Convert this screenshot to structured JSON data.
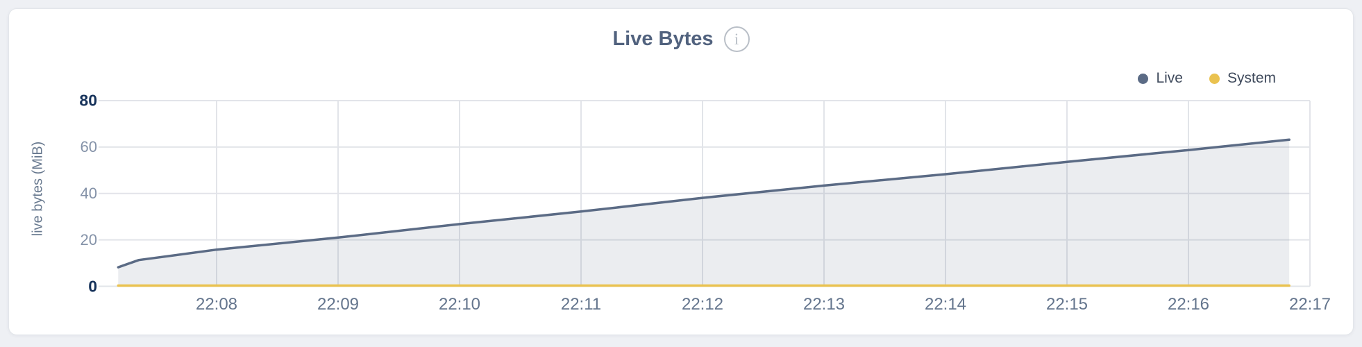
{
  "header": {
    "info_glyph": "i"
  },
  "chart_data": {
    "type": "area",
    "title": "Live Bytes",
    "xlabel": "",
    "ylabel": "live bytes (MiB)",
    "ylim": [
      0,
      80
    ],
    "xlim_minutes_after_2200": [
      7,
      17
    ],
    "grid": true,
    "legend_position": "top-right",
    "y_ticks": [
      {
        "value": 0,
        "label": "0",
        "emphasis": true
      },
      {
        "value": 20,
        "label": "20",
        "emphasis": false
      },
      {
        "value": 40,
        "label": "40",
        "emphasis": false
      },
      {
        "value": 60,
        "label": "60",
        "emphasis": false
      },
      {
        "value": 80,
        "label": "80",
        "emphasis": true
      }
    ],
    "x_ticks": [
      {
        "t": 8,
        "label": "22:08"
      },
      {
        "t": 9,
        "label": "22:09"
      },
      {
        "t": 10,
        "label": "22:10"
      },
      {
        "t": 11,
        "label": "22:11"
      },
      {
        "t": 12,
        "label": "22:12"
      },
      {
        "t": 13,
        "label": "22:13"
      },
      {
        "t": 14,
        "label": "22:14"
      },
      {
        "t": 15,
        "label": "22:15"
      },
      {
        "t": 16,
        "label": "22:16"
      },
      {
        "t": 17,
        "label": "22:17"
      }
    ],
    "series": [
      {
        "name": "Live",
        "unit": "MiB",
        "color": "#5b6b85",
        "fill": "rgba(91,107,133,0.12)",
        "points": [
          [
            7.19,
            8.2
          ],
          [
            7.36,
            11.3
          ],
          [
            8.0,
            15.8
          ],
          [
            9.0,
            21.0
          ],
          [
            10.0,
            26.8
          ],
          [
            11.0,
            32.2
          ],
          [
            12.0,
            38.1
          ],
          [
            13.0,
            43.4
          ],
          [
            14.0,
            48.3
          ],
          [
            15.0,
            53.6
          ],
          [
            16.0,
            58.7
          ],
          [
            16.83,
            63.2
          ]
        ]
      },
      {
        "name": "System",
        "unit": "MiB",
        "color": "#eac24f",
        "fill": "none",
        "points": [
          [
            7.19,
            0.3
          ],
          [
            16.83,
            0.3
          ]
        ]
      }
    ]
  },
  "colors": {
    "page_bg": "#eef0f4",
    "card_bg": "#ffffff",
    "card_border": "#e3e6ea",
    "grid": "#e2e4e9",
    "title": "#51627e",
    "x_tick": "#64758d",
    "y_tick": "#8492a8",
    "y_tick_emphasis": "#16325a",
    "axis_title": "#68798f",
    "legend_text": "#3f4a5c",
    "info_icon": "#b9bfc7",
    "live": "#5b6b85",
    "system": "#eac24f"
  }
}
